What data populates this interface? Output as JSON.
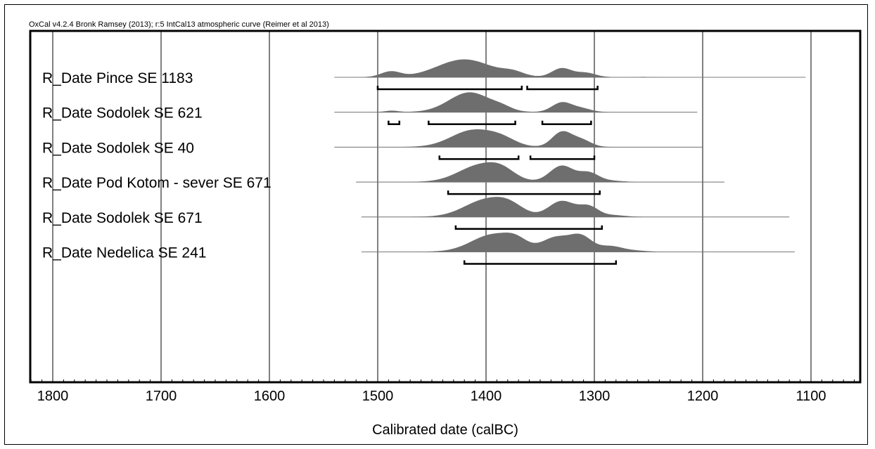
{
  "header": {
    "text": "OxCal v4.2.4 Bronk Ramsey (2013); r:5 IntCal13 atmospheric curve (Reimer et al 2013)"
  },
  "colors": {
    "distribution": "#6e6e6e",
    "line": "#888888",
    "frame": "#000000",
    "grid": "#000000"
  },
  "chart_data": {
    "type": "area",
    "xlabel": "Calibrated date (calBC)",
    "ylabel": "",
    "xlim": [
      1820,
      1050
    ],
    "x_reversed": true,
    "xticks": [
      1800,
      1700,
      1600,
      1500,
      1400,
      1300,
      1200,
      1100
    ],
    "grid": true,
    "series": [
      {
        "name": "R_Date Pince SE 1183",
        "range": [
          1540,
          1105
        ],
        "peaks": [
          [
            1488,
            0.28,
            9
          ],
          [
            1420,
            0.9,
            25
          ],
          [
            1375,
            0.2,
            10
          ],
          [
            1330,
            0.45,
            9
          ],
          [
            1308,
            0.22,
            9
          ],
          [
            1255,
            0.01,
            8
          ]
        ],
        "hpd": [
          [
            1500,
            1367
          ],
          [
            1362,
            1297
          ]
        ]
      },
      {
        "name": "R_Date Sodolek SE 621",
        "range": [
          1540,
          1205
        ],
        "peaks": [
          [
            1487,
            0.07,
            6
          ],
          [
            1415,
            1.0,
            19
          ],
          [
            1385,
            0.15,
            9
          ],
          [
            1330,
            0.48,
            9
          ],
          [
            1312,
            0.18,
            9
          ]
        ],
        "hpd": [
          [
            1490,
            1480
          ],
          [
            1453,
            1373
          ],
          [
            1348,
            1303
          ]
        ]
      },
      {
        "name": "R_Date Sodolek SE 40",
        "range": [
          1540,
          1200
        ],
        "peaks": [
          [
            1412,
            0.85,
            20
          ],
          [
            1385,
            0.3,
            13
          ],
          [
            1330,
            0.75,
            9
          ],
          [
            1312,
            0.35,
            9
          ]
        ],
        "hpd": [
          [
            1443,
            1370
          ],
          [
            1359,
            1300
          ]
        ]
      },
      {
        "name": "R_Date Pod Kotom - sever SE 671",
        "range": [
          1520,
          1180
        ],
        "peaks": [
          [
            1405,
            0.85,
            20
          ],
          [
            1385,
            0.35,
            12
          ],
          [
            1330,
            0.82,
            11
          ],
          [
            1305,
            0.45,
            9
          ],
          [
            1285,
            0.06,
            10
          ]
        ],
        "hpd": [
          [
            1435,
            1295
          ]
        ]
      },
      {
        "name": "R_Date Sodolek SE 671",
        "range": [
          1515,
          1120
        ],
        "peaks": [
          [
            1400,
            0.85,
            20
          ],
          [
            1378,
            0.4,
            13
          ],
          [
            1330,
            0.8,
            12
          ],
          [
            1305,
            0.5,
            9
          ],
          [
            1282,
            0.08,
            10
          ]
        ],
        "hpd": [
          [
            1428,
            1293
          ]
        ]
      },
      {
        "name": "R_Date Nedelica SE 241",
        "range": [
          1515,
          1115
        ],
        "peaks": [
          [
            1393,
            0.88,
            20
          ],
          [
            1372,
            0.35,
            10
          ],
          [
            1335,
            0.72,
            13
          ],
          [
            1312,
            0.72,
            10
          ],
          [
            1285,
            0.28,
            11
          ],
          [
            1262,
            0.05,
            10
          ]
        ],
        "hpd": [
          [
            1420,
            1280
          ]
        ]
      }
    ]
  }
}
